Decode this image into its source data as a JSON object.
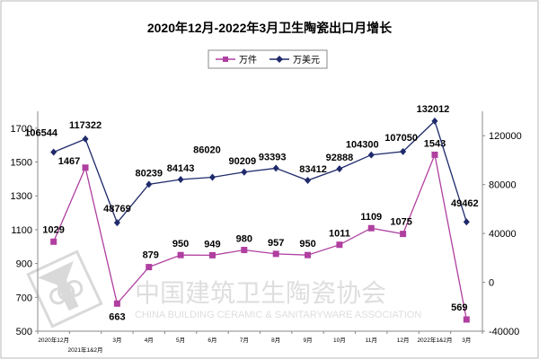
{
  "chart_data": {
    "type": "line",
    "title": "2020年12月-2022年3月卫生陶瓷出口月增长",
    "categories": [
      "2020年12月",
      "2021年1&2月",
      "3月",
      "4月",
      "5月",
      "6月",
      "7月",
      "8月",
      "9月",
      "10月",
      "11月",
      "12月",
      "2022年1&2月",
      "3月"
    ],
    "series": [
      {
        "name": "万件",
        "axis": "left",
        "color": "#b03fa0",
        "marker": "square",
        "values": [
          1029,
          1467,
          663,
          879,
          950,
          949,
          980,
          957,
          950,
          1011,
          1109,
          1075,
          1543,
          569
        ]
      },
      {
        "name": "万美元",
        "axis": "right",
        "color": "#1f2a6b",
        "marker": "diamond",
        "values": [
          106544,
          117322,
          48769,
          80239,
          84143,
          86020,
          90209,
          93393,
          83412,
          92888,
          104300,
          107050,
          132012,
          49462
        ]
      }
    ],
    "left_axis": {
      "range": [
        500,
        1800
      ],
      "ticks": [
        500,
        700,
        900,
        1100,
        1300,
        1500,
        1700
      ]
    },
    "right_axis": {
      "range": [
        -40000,
        140000
      ],
      "ticks": [
        -40000,
        0,
        40000,
        80000,
        120000
      ]
    },
    "legend": {
      "placement": "top"
    },
    "grid": false,
    "data_labels": true
  },
  "watermark": {
    "cn": "中国建筑卫生陶瓷协会",
    "en": "CHINA BUILDING CERAMIC & SANITARYWARE ASSOCIATION"
  }
}
